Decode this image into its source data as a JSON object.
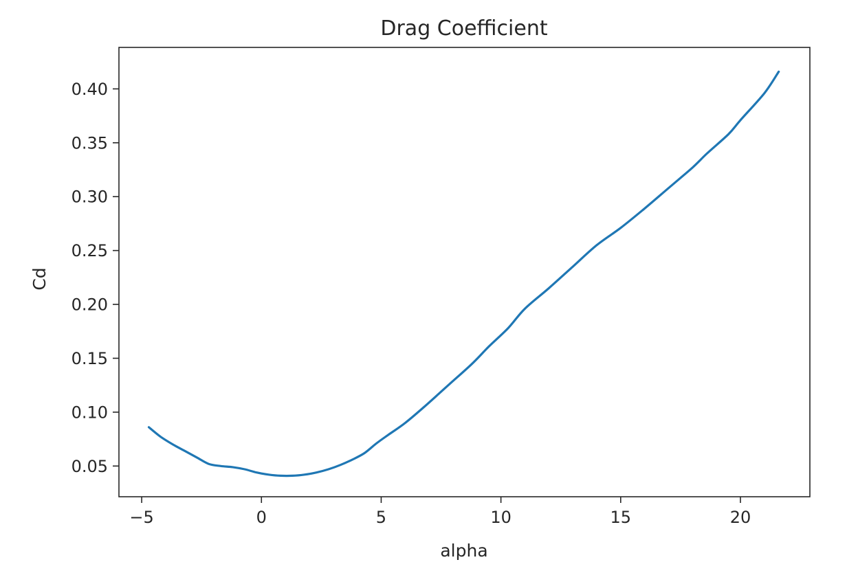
{
  "chart_data": {
    "type": "line",
    "title": "Drag Coefficient",
    "xlabel": "alpha",
    "ylabel": "Cd",
    "xlim": [
      -5.95,
      22.9
    ],
    "ylim": [
      0.0215,
      0.4385
    ],
    "xticks": [
      -5,
      0,
      5,
      10,
      15,
      20
    ],
    "xtick_labels": [
      "−5",
      "0",
      "5",
      "10",
      "15",
      "20"
    ],
    "yticks": [
      0.05,
      0.1,
      0.15,
      0.2,
      0.25,
      0.3,
      0.35,
      0.4
    ],
    "ytick_labels": [
      "0.05",
      "0.10",
      "0.15",
      "0.20",
      "0.25",
      "0.30",
      "0.35",
      "0.40"
    ],
    "grid": false,
    "series": [
      {
        "color": "#1f77b4",
        "x": [
          -4.7,
          -4.2,
          -3.7,
          -3.2,
          -2.7,
          -2.2,
          -1.7,
          -1.2,
          -0.7,
          -0.2,
          0.3,
          0.8,
          1.3,
          1.8,
          2.3,
          2.8,
          3.3,
          3.8,
          4.3,
          4.8,
          5.3,
          6.0,
          6.8,
          7.8,
          8.8,
          9.5,
          10.3,
          11.0,
          12.0,
          13.0,
          14.0,
          15.0,
          16.0,
          17.0,
          18.0,
          18.6,
          19.5,
          20.0,
          21.0,
          21.6
        ],
        "y": [
          0.086,
          0.077,
          0.07,
          0.064,
          0.058,
          0.052,
          0.05,
          0.049,
          0.047,
          0.044,
          0.042,
          0.041,
          0.041,
          0.042,
          0.044,
          0.047,
          0.051,
          0.056,
          0.062,
          0.071,
          0.079,
          0.09,
          0.105,
          0.125,
          0.145,
          0.161,
          0.178,
          0.196,
          0.215,
          0.235,
          0.255,
          0.271,
          0.289,
          0.308,
          0.327,
          0.34,
          0.358,
          0.371,
          0.396,
          0.416
        ]
      }
    ]
  }
}
